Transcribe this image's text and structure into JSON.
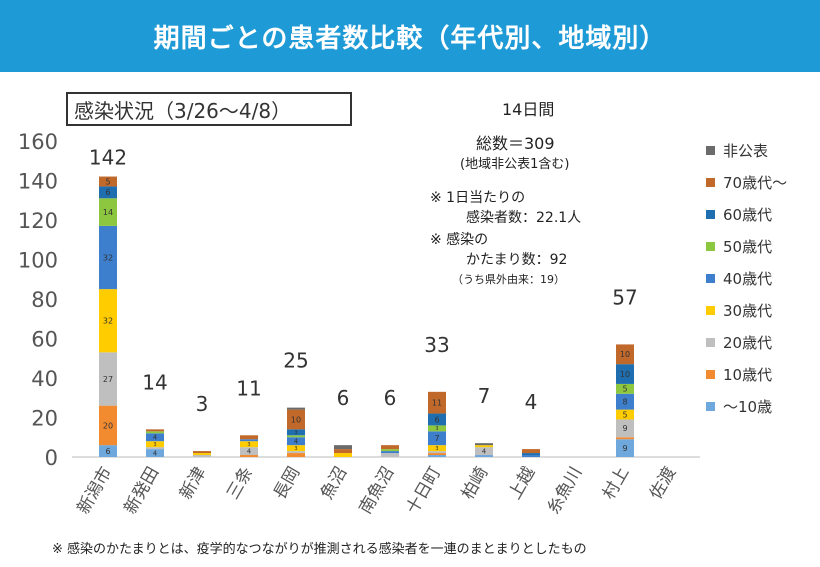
{
  "banner_title": "期間ごとの患者数比較（年代別、地域別）",
  "badge": "感染状況（3/26～4/8）",
  "info": {
    "period": "14日間",
    "total": "総数＝309",
    "total_note": "(地域非公表1含む)",
    "per_day_1": "※ 1日当たりの",
    "per_day_2": "感染者数：22.1人",
    "cluster_1": "※ 感染の",
    "cluster_2": "かたまり数：92",
    "cluster_note": "（うち県外由来：19）"
  },
  "footnote": "※ 感染のかたまりとは、疫学的なつながりが推測される感染者を一連のまとまりとしたもの",
  "chart_data": {
    "type": "bar",
    "stacked": true,
    "ylim": [
      0,
      160
    ],
    "yticks": [
      0,
      20,
      40,
      60,
      80,
      100,
      120,
      140,
      160
    ],
    "categories": [
      "新潟市",
      "新発田",
      "新津",
      "三条",
      "長岡",
      "魚沼",
      "南魚沼",
      "十日町",
      "柏崎",
      "上越",
      "糸魚川",
      "村上",
      "佐渡"
    ],
    "totals": [
      142,
      14,
      3,
      11,
      25,
      6,
      6,
      33,
      7,
      4,
      null,
      57,
      null
    ],
    "series": [
      {
        "name": "～10歳",
        "color": "#6fa8dc",
        "values": [
          6,
          4,
          0,
          0,
          0,
          0,
          0,
          1,
          1,
          0,
          0,
          9,
          0
        ]
      },
      {
        "name": "10歳代",
        "color": "#f28b30",
        "values": [
          20,
          0,
          0,
          1,
          2,
          0,
          0,
          1,
          0,
          0,
          0,
          1,
          0
        ]
      },
      {
        "name": "20歳代",
        "color": "#bfbfbf",
        "values": [
          27,
          1,
          1,
          4,
          1,
          0,
          2,
          1,
          4,
          0,
          0,
          9,
          0
        ]
      },
      {
        "name": "30歳代",
        "color": "#ffcc00",
        "values": [
          32,
          3,
          1,
          3,
          3,
          2,
          0,
          3,
          1,
          0,
          0,
          5,
          0
        ]
      },
      {
        "name": "40歳代",
        "color": "#3d7fcc",
        "values": [
          32,
          4,
          0,
          1,
          4,
          0,
          1,
          7,
          0,
          1,
          0,
          8,
          0
        ]
      },
      {
        "name": "50歳代",
        "color": "#8dc63f",
        "values": [
          14,
          1,
          0,
          0,
          1,
          0,
          1,
          3,
          0,
          0,
          0,
          5,
          0
        ]
      },
      {
        "name": "60歳代",
        "color": "#1f6fb0",
        "values": [
          6,
          0,
          0,
          0,
          3,
          0,
          0,
          6,
          0,
          1,
          0,
          10,
          0
        ]
      },
      {
        "name": "70歳代～",
        "color": "#c0692a",
        "values": [
          5,
          1,
          1,
          2,
          10,
          2,
          2,
          11,
          0,
          2,
          0,
          10,
          0
        ]
      },
      {
        "name": "非公表",
        "color": "#6b6b6b",
        "values": [
          0,
          0,
          0,
          0,
          1,
          2,
          0,
          0,
          1,
          0,
          0,
          0,
          0
        ]
      }
    ],
    "legend_position": "right",
    "grid": false
  }
}
